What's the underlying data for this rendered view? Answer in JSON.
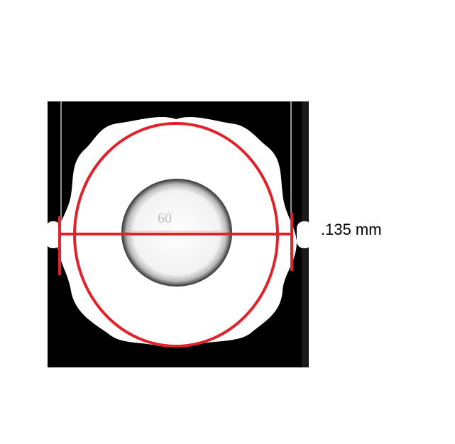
{
  "diagram": {
    "inner_label": "60",
    "dimension_label": ".135 mm",
    "colors": {
      "background": "#ffffff",
      "photo_background": "#000000",
      "part": "#ffffff",
      "annotation": "#e0232b",
      "inner_label": "#bdbdbd",
      "dimension_text": "#000000"
    }
  }
}
